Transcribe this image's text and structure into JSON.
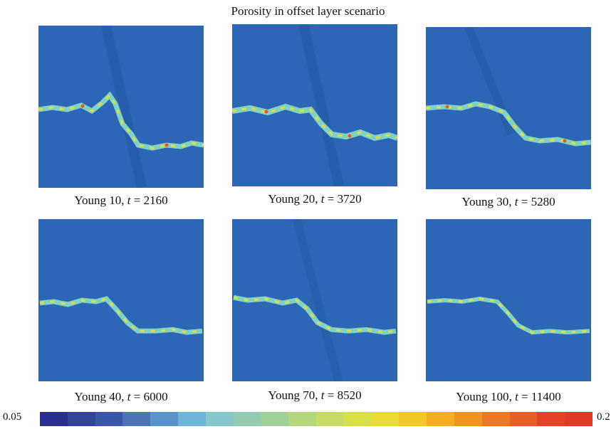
{
  "title": "Porosity in offset layer scenario",
  "panels": [
    {
      "young": "Young 10",
      "t_value": "2160"
    },
    {
      "young": "Young 20",
      "t_value": "3720"
    },
    {
      "young": "Young 30",
      "t_value": "5280"
    },
    {
      "young": "Young 40",
      "t_value": "6000"
    },
    {
      "young": "Young 70",
      "t_value": "8520"
    },
    {
      "young": "Young 100",
      "t_value": "11400"
    }
  ],
  "t_symbol": "t",
  "equals": "=",
  "colorbar": {
    "min_label": "0.05",
    "max_label": "0.2",
    "colors": [
      "#2b2f8f",
      "#33439c",
      "#3a56a8",
      "#4a73b8",
      "#5a93c8",
      "#6fb3d6",
      "#86c7c9",
      "#93ccb1",
      "#9fd09a",
      "#b3d77f",
      "#c6dc63",
      "#d8df45",
      "#e8da2e",
      "#f3c822",
      "#f5ae1f",
      "#f2921f",
      "#ee7722",
      "#ea5c25",
      "#e54226",
      "#e03a26"
    ]
  }
}
